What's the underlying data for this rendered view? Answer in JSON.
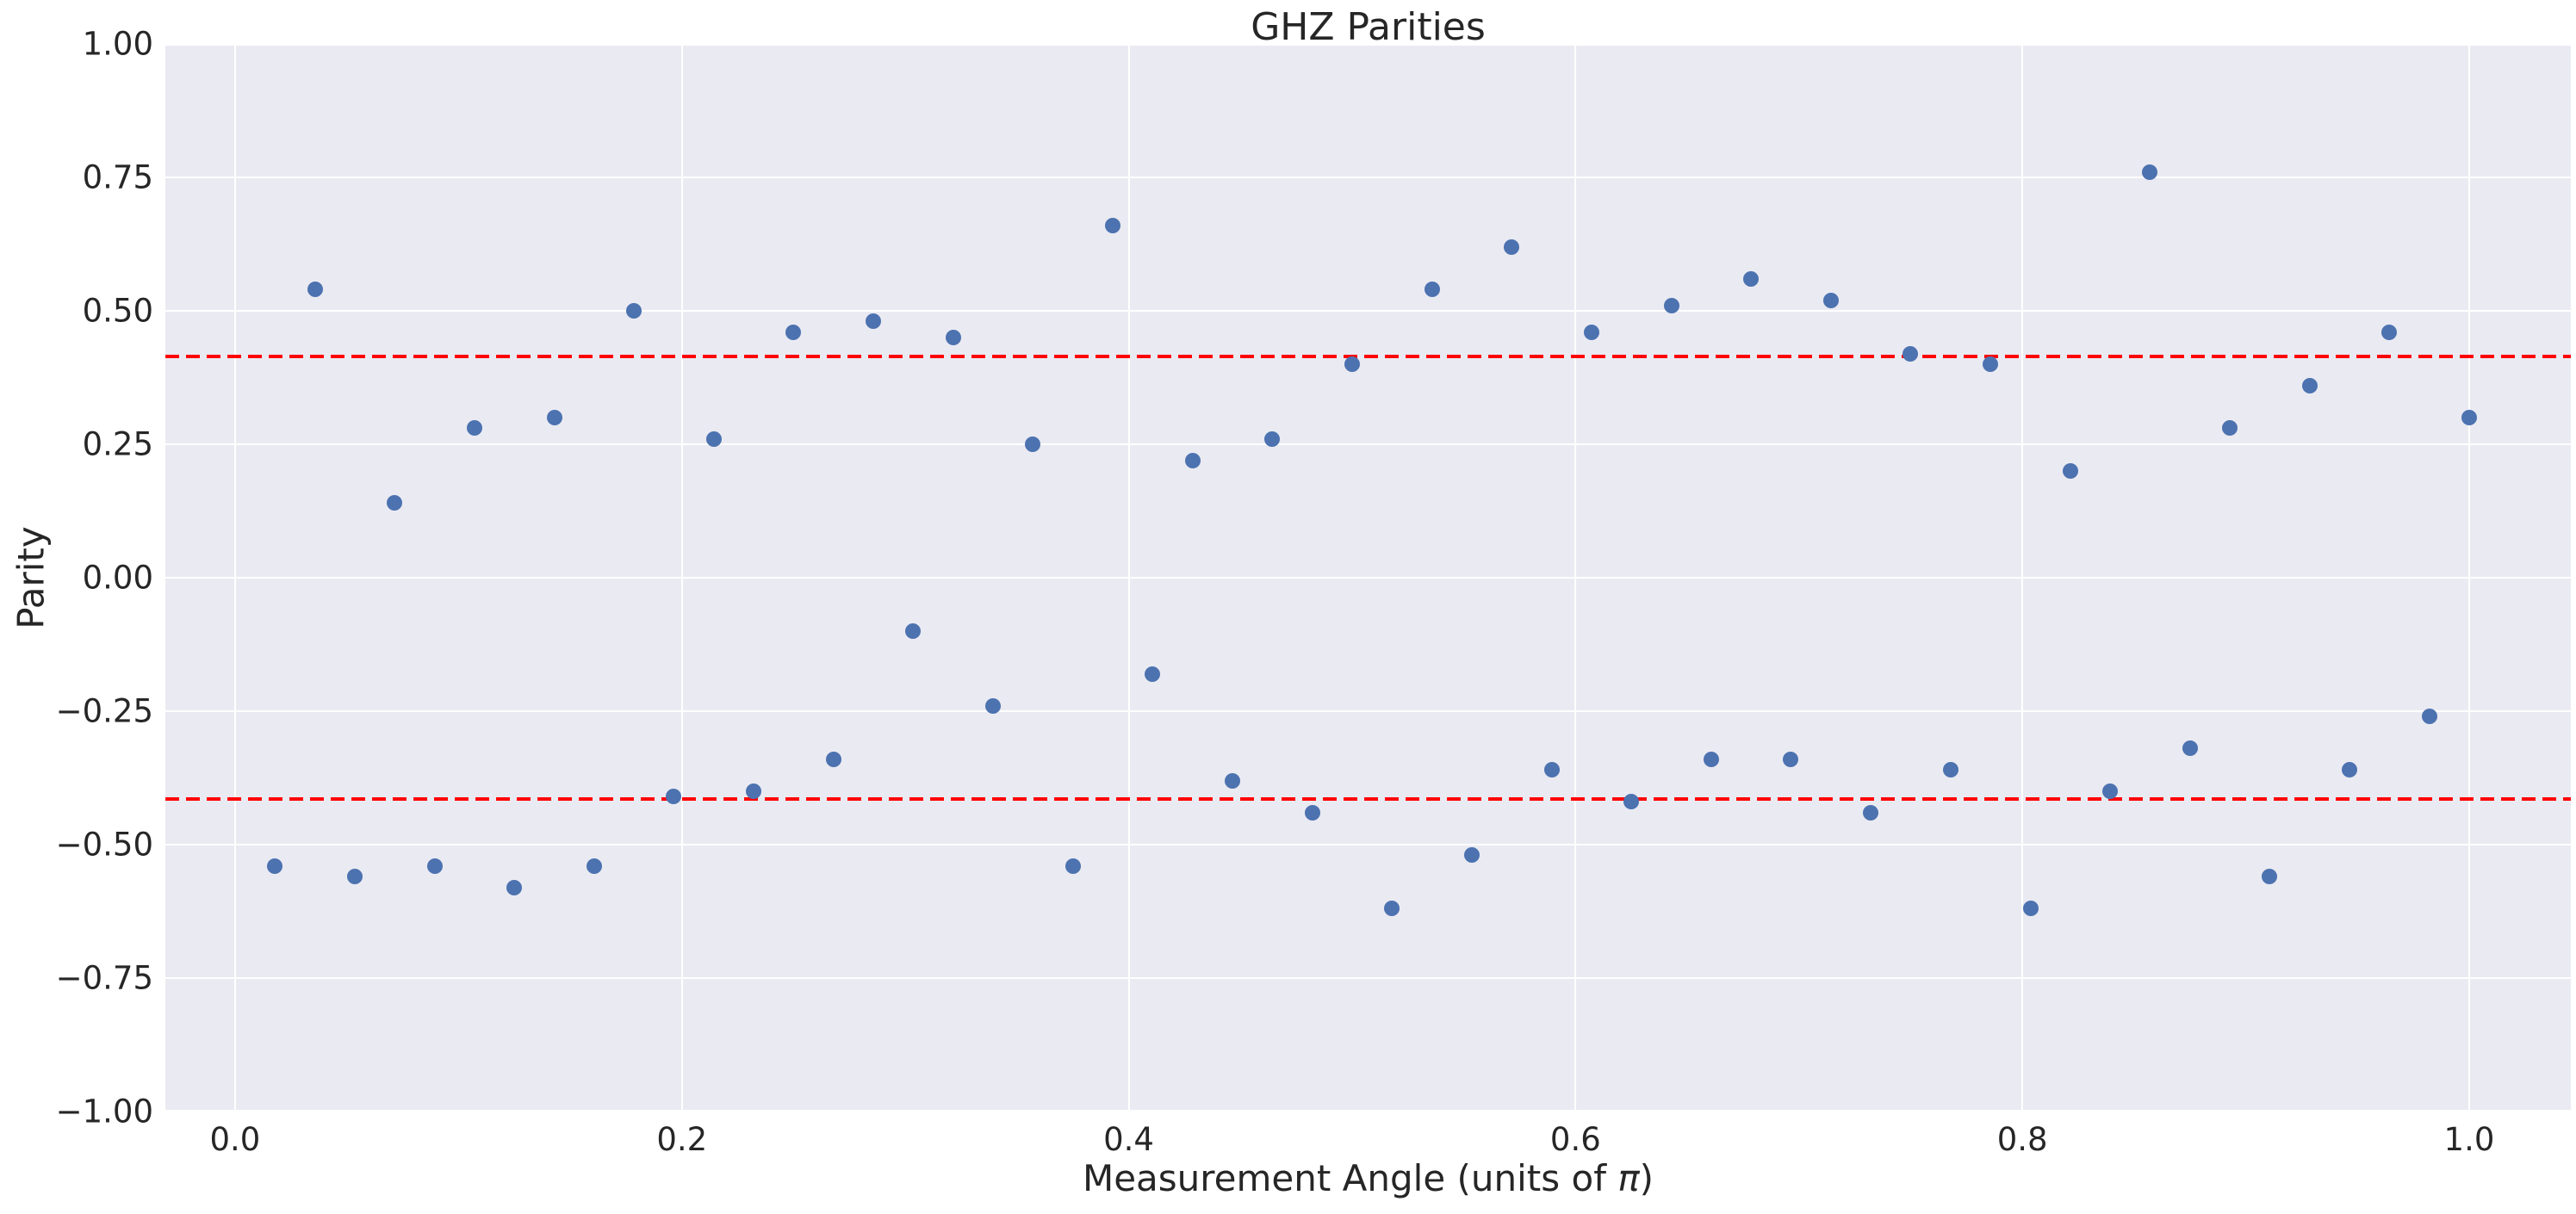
{
  "title": "GHZ Parities",
  "axis": {
    "ylabel": "Parity",
    "xlabel_pre": "Measurement Angle (units of ",
    "xlabel_pi": "π",
    "xlabel_post": ")"
  },
  "chart_data": {
    "type": "scatter",
    "title": "GHZ Parities",
    "xlabel": "Measurement Angle (units of π)",
    "ylabel": "Parity",
    "xlim": [
      -0.0312,
      1.0455
    ],
    "ylim": [
      -1.0,
      1.0
    ],
    "grid": true,
    "legend": "none",
    "x_ticks": {
      "values": [
        0.0,
        0.2,
        0.4,
        0.6,
        0.8,
        1.0
      ],
      "labels": [
        "0.0",
        "0.2",
        "0.4",
        "0.6",
        "0.8",
        "1.0"
      ]
    },
    "y_ticks": {
      "values": [
        1.0,
        0.75,
        0.5,
        0.25,
        0.0,
        -0.25,
        -0.5,
        -0.75,
        -1.0
      ],
      "labels": [
        "1.00",
        "0.75",
        "0.50",
        "0.25",
        "0.00",
        "−0.25",
        "−0.50",
        "−0.75",
        "−1.00"
      ]
    },
    "threshold_lines": [
      {
        "value": 0.414,
        "style": "dashed",
        "color": "#ff0000"
      },
      {
        "value": -0.414,
        "style": "dashed",
        "color": "#ff0000"
      }
    ],
    "series": [
      {
        "name": "parity",
        "marker": "circle",
        "color": "#4c72b0",
        "x": [
          0.0179,
          0.0357,
          0.0536,
          0.0714,
          0.0893,
          0.1071,
          0.125,
          0.1429,
          0.1607,
          0.1786,
          0.1964,
          0.2143,
          0.2321,
          0.25,
          0.2679,
          0.2857,
          0.3036,
          0.3214,
          0.3393,
          0.3571,
          0.375,
          0.3929,
          0.4107,
          0.4286,
          0.4464,
          0.4643,
          0.4821,
          0.5,
          0.5179,
          0.5357,
          0.5536,
          0.5714,
          0.5893,
          0.6071,
          0.625,
          0.6429,
          0.6607,
          0.6786,
          0.6964,
          0.7143,
          0.7321,
          0.75,
          0.7679,
          0.7857,
          0.8036,
          0.8214,
          0.8393,
          0.8571,
          0.875,
          0.8929,
          0.9107,
          0.9286,
          0.9464,
          0.9643,
          0.9821,
          1.0
        ],
        "y": [
          -0.54,
          0.54,
          -0.56,
          0.14,
          -0.54,
          0.28,
          -0.58,
          0.3,
          -0.54,
          0.5,
          -0.41,
          0.26,
          -0.4,
          0.46,
          -0.34,
          0.48,
          -0.1,
          0.45,
          -0.24,
          0.25,
          -0.54,
          0.66,
          -0.18,
          0.22,
          -0.38,
          0.26,
          -0.44,
          0.4,
          -0.62,
          0.54,
          -0.52,
          0.62,
          -0.36,
          0.46,
          -0.42,
          0.51,
          -0.34,
          0.56,
          -0.34,
          0.52,
          -0.44,
          0.42,
          -0.36,
          0.4,
          -0.62,
          0.2,
          -0.4,
          0.76,
          -0.32,
          0.28,
          -0.56,
          0.36,
          -0.36,
          0.46,
          -0.26,
          0.3
        ]
      }
    ]
  },
  "colors": {
    "figure_background": "#ffffff",
    "axes_background": "#eaeaf2",
    "gridline": "#ffffff",
    "marker": "#4c72b0",
    "threshold": "#ff0000",
    "text": "#262626"
  }
}
